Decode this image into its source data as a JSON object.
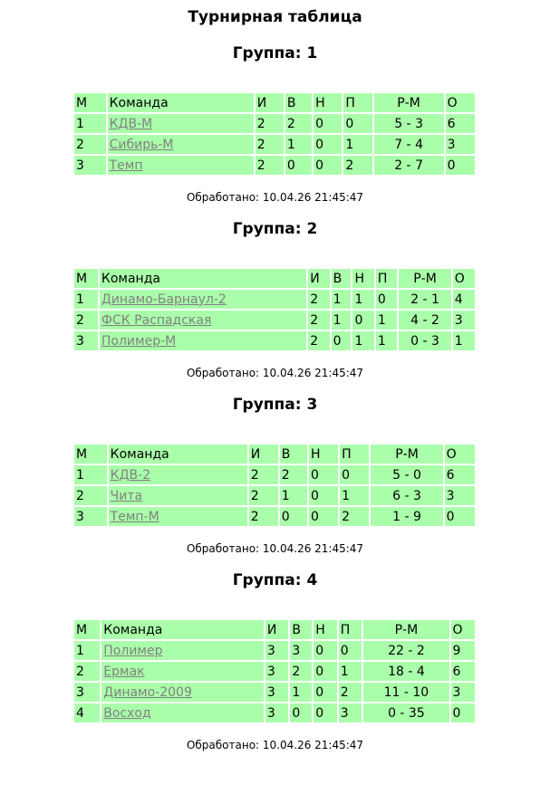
{
  "title": "Турнирная таблица",
  "headers": [
    "М",
    "Команда",
    "И",
    "В",
    "Н",
    "П",
    "Р-М",
    "О"
  ],
  "groups": [
    {
      "title": "Группа: 1",
      "rows": [
        [
          "1",
          "КДВ-М",
          "2",
          "2",
          "0",
          "0",
          "5 - 3",
          "6"
        ],
        [
          "2",
          "Сибирь-М",
          "2",
          "1",
          "0",
          "1",
          "7 - 4",
          "3"
        ],
        [
          "3",
          "Темп",
          "2",
          "0",
          "0",
          "2",
          "2 - 7",
          "0"
        ]
      ],
      "footer": "Обработано: 10.04.26 21:45:47"
    },
    {
      "title": "Группа: 2",
      "rows": [
        [
          "1",
          "Динамо-Барнаул-2",
          "2",
          "1",
          "1",
          "0",
          "2 - 1",
          "4"
        ],
        [
          "2",
          "ФСК Распадская",
          "2",
          "1",
          "0",
          "1",
          "4 - 2",
          "3"
        ],
        [
          "3",
          "Полимер-М",
          "2",
          "0",
          "1",
          "1",
          "0 - 3",
          "1"
        ]
      ],
      "footer": "Обработано: 10.04.26 21:45:47"
    },
    {
      "title": "Группа: 3",
      "rows": [
        [
          "1",
          "КДВ-2",
          "2",
          "2",
          "0",
          "0",
          "5 - 0",
          "6"
        ],
        [
          "2",
          "Чита",
          "2",
          "1",
          "0",
          "1",
          "6 - 3",
          "3"
        ],
        [
          "3",
          "Темп-М",
          "2",
          "0",
          "0",
          "2",
          "1 - 9",
          "0"
        ]
      ],
      "footer": "Обработано: 10.04.26 21:45:47"
    },
    {
      "title": "Группа: 4",
      "rows": [
        [
          "1",
          "Полимер",
          "3",
          "3",
          "0",
          "0",
          "22 - 2",
          "9"
        ],
        [
          "2",
          "Ермак",
          "3",
          "2",
          "0",
          "1",
          "18 - 4",
          "6"
        ],
        [
          "3",
          "Динамо-2009",
          "3",
          "1",
          "0",
          "2",
          "11 - 10",
          "3"
        ],
        [
          "4",
          "Восход",
          "3",
          "0",
          "0",
          "3",
          "0 - 35",
          "0"
        ]
      ],
      "footer": "Обработано: 10.04.26 21:45:47"
    }
  ],
  "colors": {
    "cell_bg": "#aaffaa",
    "link": "#808080"
  }
}
